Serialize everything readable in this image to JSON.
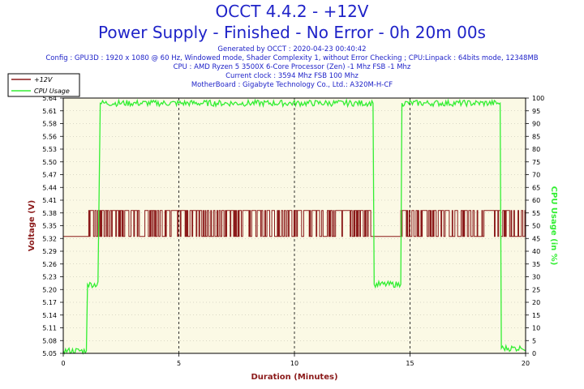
{
  "header": {
    "title": "OCCT 4.4.2 - +12V",
    "subtitle": "Power Supply - Finished - No Error - 0h 20m 00s",
    "info_lines": [
      "Generated by OCCT : 2020-04-23 00:40:42",
      "Config : GPU3D : 1920 x 1080 @ 60 Hz, Windowed mode, Shader Complexity 1, without Error Checking ; CPU:Linpack : 64bits mode, 12348MB",
      "CPU : AMD Ryzen 5 3500X 6-Core Processor (Zen) -1 Mhz FSB -1 Mhz",
      "Current clock : 3594 Mhz FSB 100 Mhz",
      "MotherBoard : Gigabyte Technology Co., Ltd.: A320M-H-CF"
    ]
  },
  "colors": {
    "title": "#1f23c8",
    "voltage_series": "#8b1a1a",
    "cpu_series": "#33ee33",
    "plot_background": "#fbf9e5",
    "grid": "#000000"
  },
  "chart_data": {
    "type": "line",
    "xlabel": "Duration (Minutes)",
    "ylabel_left": "Voltage (V)",
    "ylabel_right": "CPU Usage (in %)",
    "xlim": [
      0,
      20
    ],
    "ylim_left": [
      5.05,
      5.64
    ],
    "ylim_right": [
      0,
      100
    ],
    "x_ticks": [
      "0",
      "5",
      "10",
      "15",
      "20"
    ],
    "y_ticks_left": [
      "5.64",
      "5.61",
      "5.58",
      "5.56",
      "5.53",
      "5.50",
      "5.47",
      "5.44",
      "5.41",
      "5.38",
      "5.35",
      "5.32",
      "5.29",
      "5.26",
      "5.23",
      "5.20",
      "5.17",
      "5.14",
      "5.11",
      "5.08",
      "5.05"
    ],
    "y_ticks_right": [
      "100",
      "95",
      "90",
      "85",
      "80",
      "75",
      "70",
      "65",
      "60",
      "55",
      "50",
      "45",
      "40",
      "35",
      "30",
      "25",
      "20",
      "15",
      "10",
      "5",
      "0"
    ],
    "grid": "dashed vertical lines at 5, 10, 15; dotted horizontal lines",
    "legend_position": "top-left",
    "series": [
      {
        "name": "+12V",
        "axis": "left",
        "style": "rapid oscillation between two levels during load",
        "low": 5.32,
        "high": 5.38,
        "segments": [
          {
            "x": [
              0,
              1.1
            ],
            "value": 5.32
          },
          {
            "x": [
              1.1,
              13.3
            ],
            "value": "5.32-5.38 oscillating"
          },
          {
            "x": [
              13.3,
              14.6
            ],
            "value": 5.32
          },
          {
            "x": [
              14.6,
              20
            ],
            "value": "5.32-5.38 oscillating"
          }
        ]
      },
      {
        "name": "CPU Usage",
        "axis": "right",
        "points": [
          [
            0,
            1
          ],
          [
            1.0,
            1
          ],
          [
            1.05,
            27
          ],
          [
            1.5,
            28
          ],
          [
            1.6,
            98
          ],
          [
            13.4,
            98
          ],
          [
            13.45,
            27
          ],
          [
            14.6,
            27
          ],
          [
            14.65,
            98
          ],
          [
            18.9,
            98
          ],
          [
            18.95,
            2
          ],
          [
            19.8,
            2
          ],
          [
            20,
            1
          ]
        ]
      }
    ]
  }
}
